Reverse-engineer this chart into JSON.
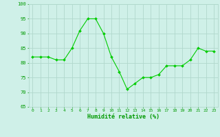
{
  "x": [
    0,
    1,
    2,
    3,
    4,
    5,
    6,
    7,
    8,
    9,
    10,
    11,
    12,
    13,
    14,
    15,
    16,
    17,
    18,
    19,
    20,
    21,
    22,
    23
  ],
  "y": [
    82,
    82,
    82,
    81,
    81,
    85,
    91,
    95,
    95,
    90,
    82,
    77,
    71,
    73,
    75,
    75,
    76,
    79,
    79,
    79,
    81,
    85,
    84,
    84
  ],
  "line_color": "#00cc00",
  "marker_color": "#00cc00",
  "bg_color": "#cff0e8",
  "grid_color": "#b0d8cc",
  "xlabel": "Humidité relative (%)",
  "xlabel_color": "#009900",
  "tick_color": "#009900",
  "ytick_labels": [
    "65",
    "70",
    "75",
    "80",
    "85",
    "90",
    "95",
    "100"
  ],
  "ytick_vals": [
    65,
    70,
    75,
    80,
    85,
    90,
    95,
    100
  ],
  "ylim": [
    65,
    100
  ],
  "xlim": [
    -0.5,
    23.5
  ],
  "figsize": [
    3.2,
    2.0
  ],
  "dpi": 100
}
